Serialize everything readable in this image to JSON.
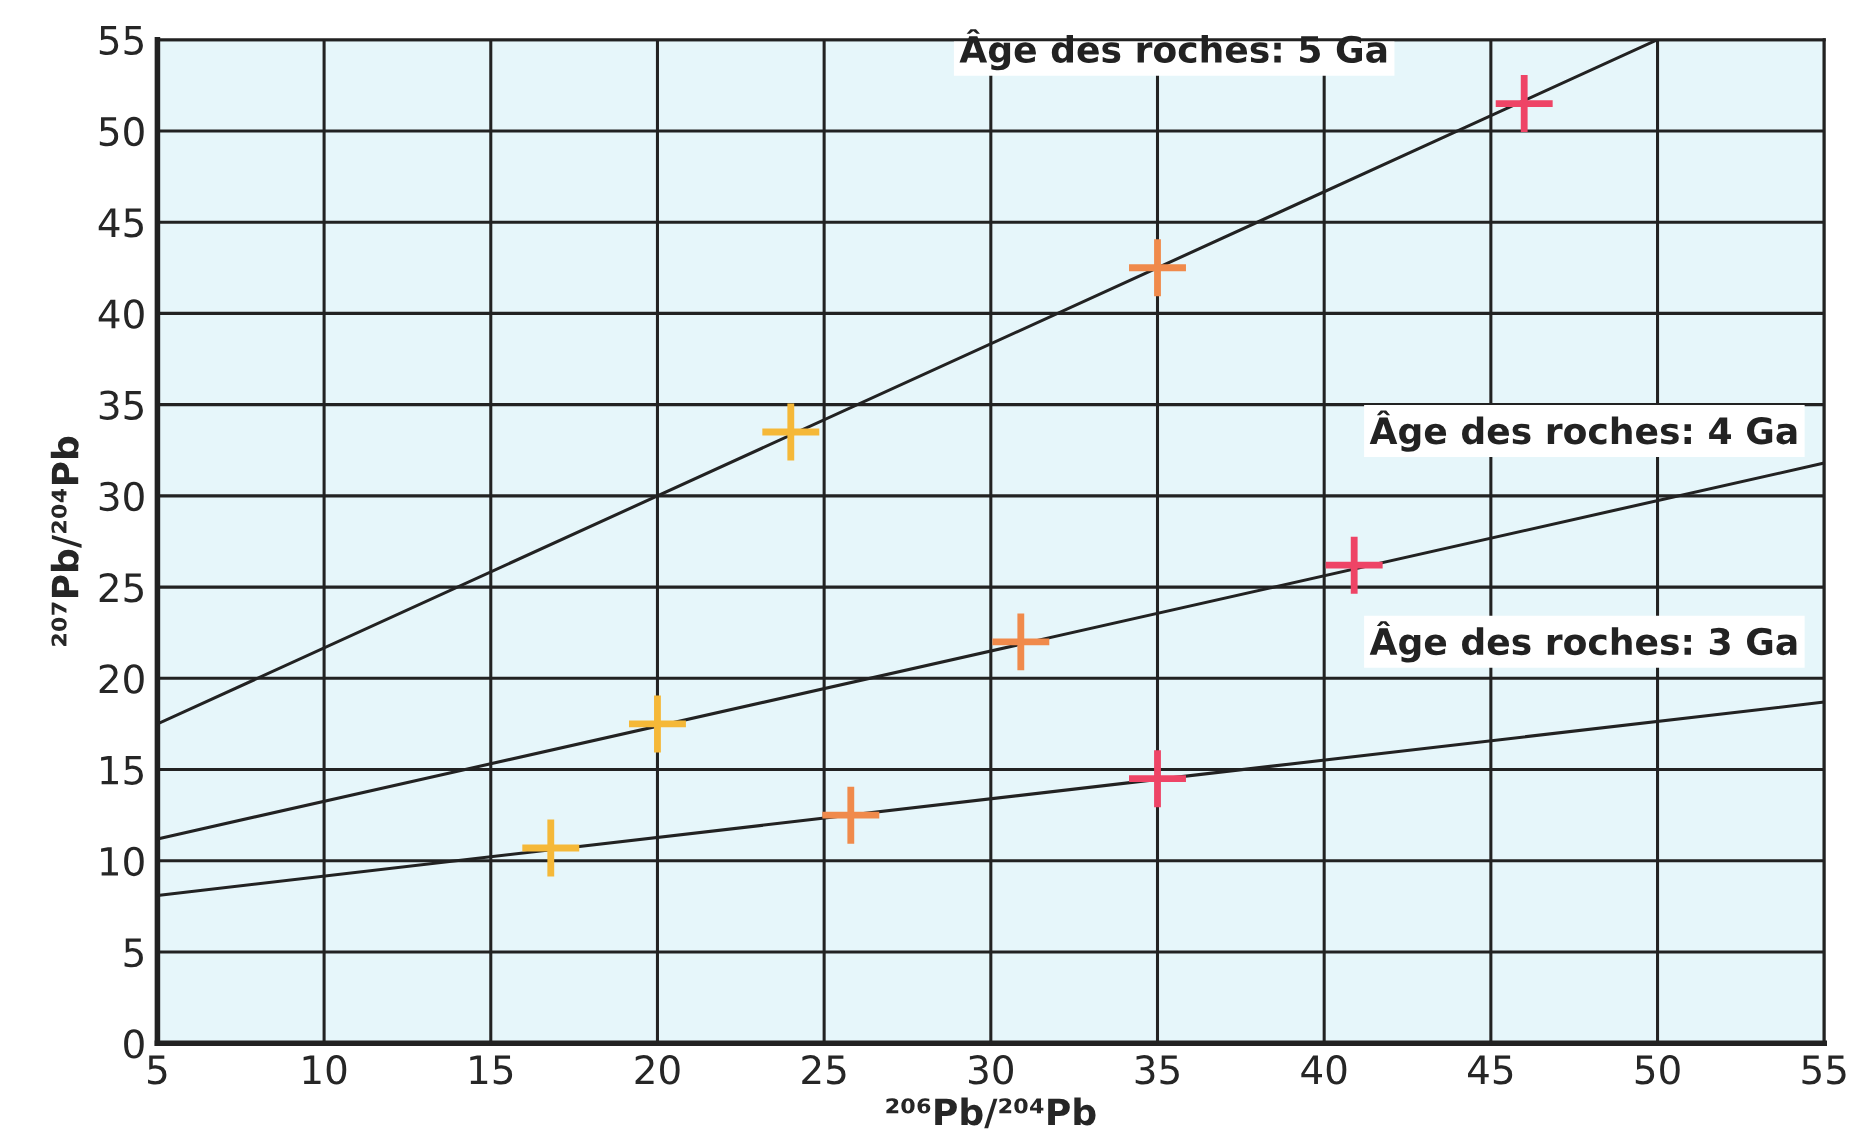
{
  "chart_data": {
    "type": "scatter",
    "xlabel": "²⁰⁶Pb/²⁰⁴Pb",
    "ylabel": "²⁰⁷Pb/²⁰⁴Pb",
    "xlim": [
      5,
      55
    ],
    "ylim": [
      0,
      55
    ],
    "xticks": [
      5,
      10,
      15,
      20,
      25,
      30,
      35,
      40,
      45,
      50,
      55
    ],
    "yticks": [
      0,
      5,
      10,
      15,
      20,
      25,
      30,
      35,
      40,
      45,
      50,
      55
    ],
    "grid": true,
    "series": [
      {
        "type": "line",
        "name": "Âge des roches: 5 Ga",
        "color": "#222222",
        "x": [
          5,
          50
        ],
        "values": [
          17.5,
          55
        ]
      },
      {
        "type": "line",
        "name": "Âge des roches: 4 Ga",
        "color": "#222222",
        "x": [
          5,
          55
        ],
        "values": [
          11.2,
          31.8
        ]
      },
      {
        "type": "line",
        "name": "Âge des roches: 3 Ga",
        "color": "#222222",
        "x": [
          5,
          55
        ],
        "values": [
          8.1,
          18.7
        ]
      },
      {
        "marker": "cross",
        "x": [
          16.8,
          20,
          24,
          25.8,
          30.9,
          35,
          35,
          40.9,
          46
        ],
        "values": [
          10.7,
          17.5,
          33.5,
          12.5,
          22,
          42.5,
          14.5,
          26.2,
          51.5
        ],
        "colors": [
          "#f5b838",
          "#f5b838",
          "#f5b838",
          "#f08a4b",
          "#f08a4b",
          "#f08a4b",
          "#ee4466",
          "#ee4466",
          "#ee4466"
        ]
      }
    ]
  }
}
